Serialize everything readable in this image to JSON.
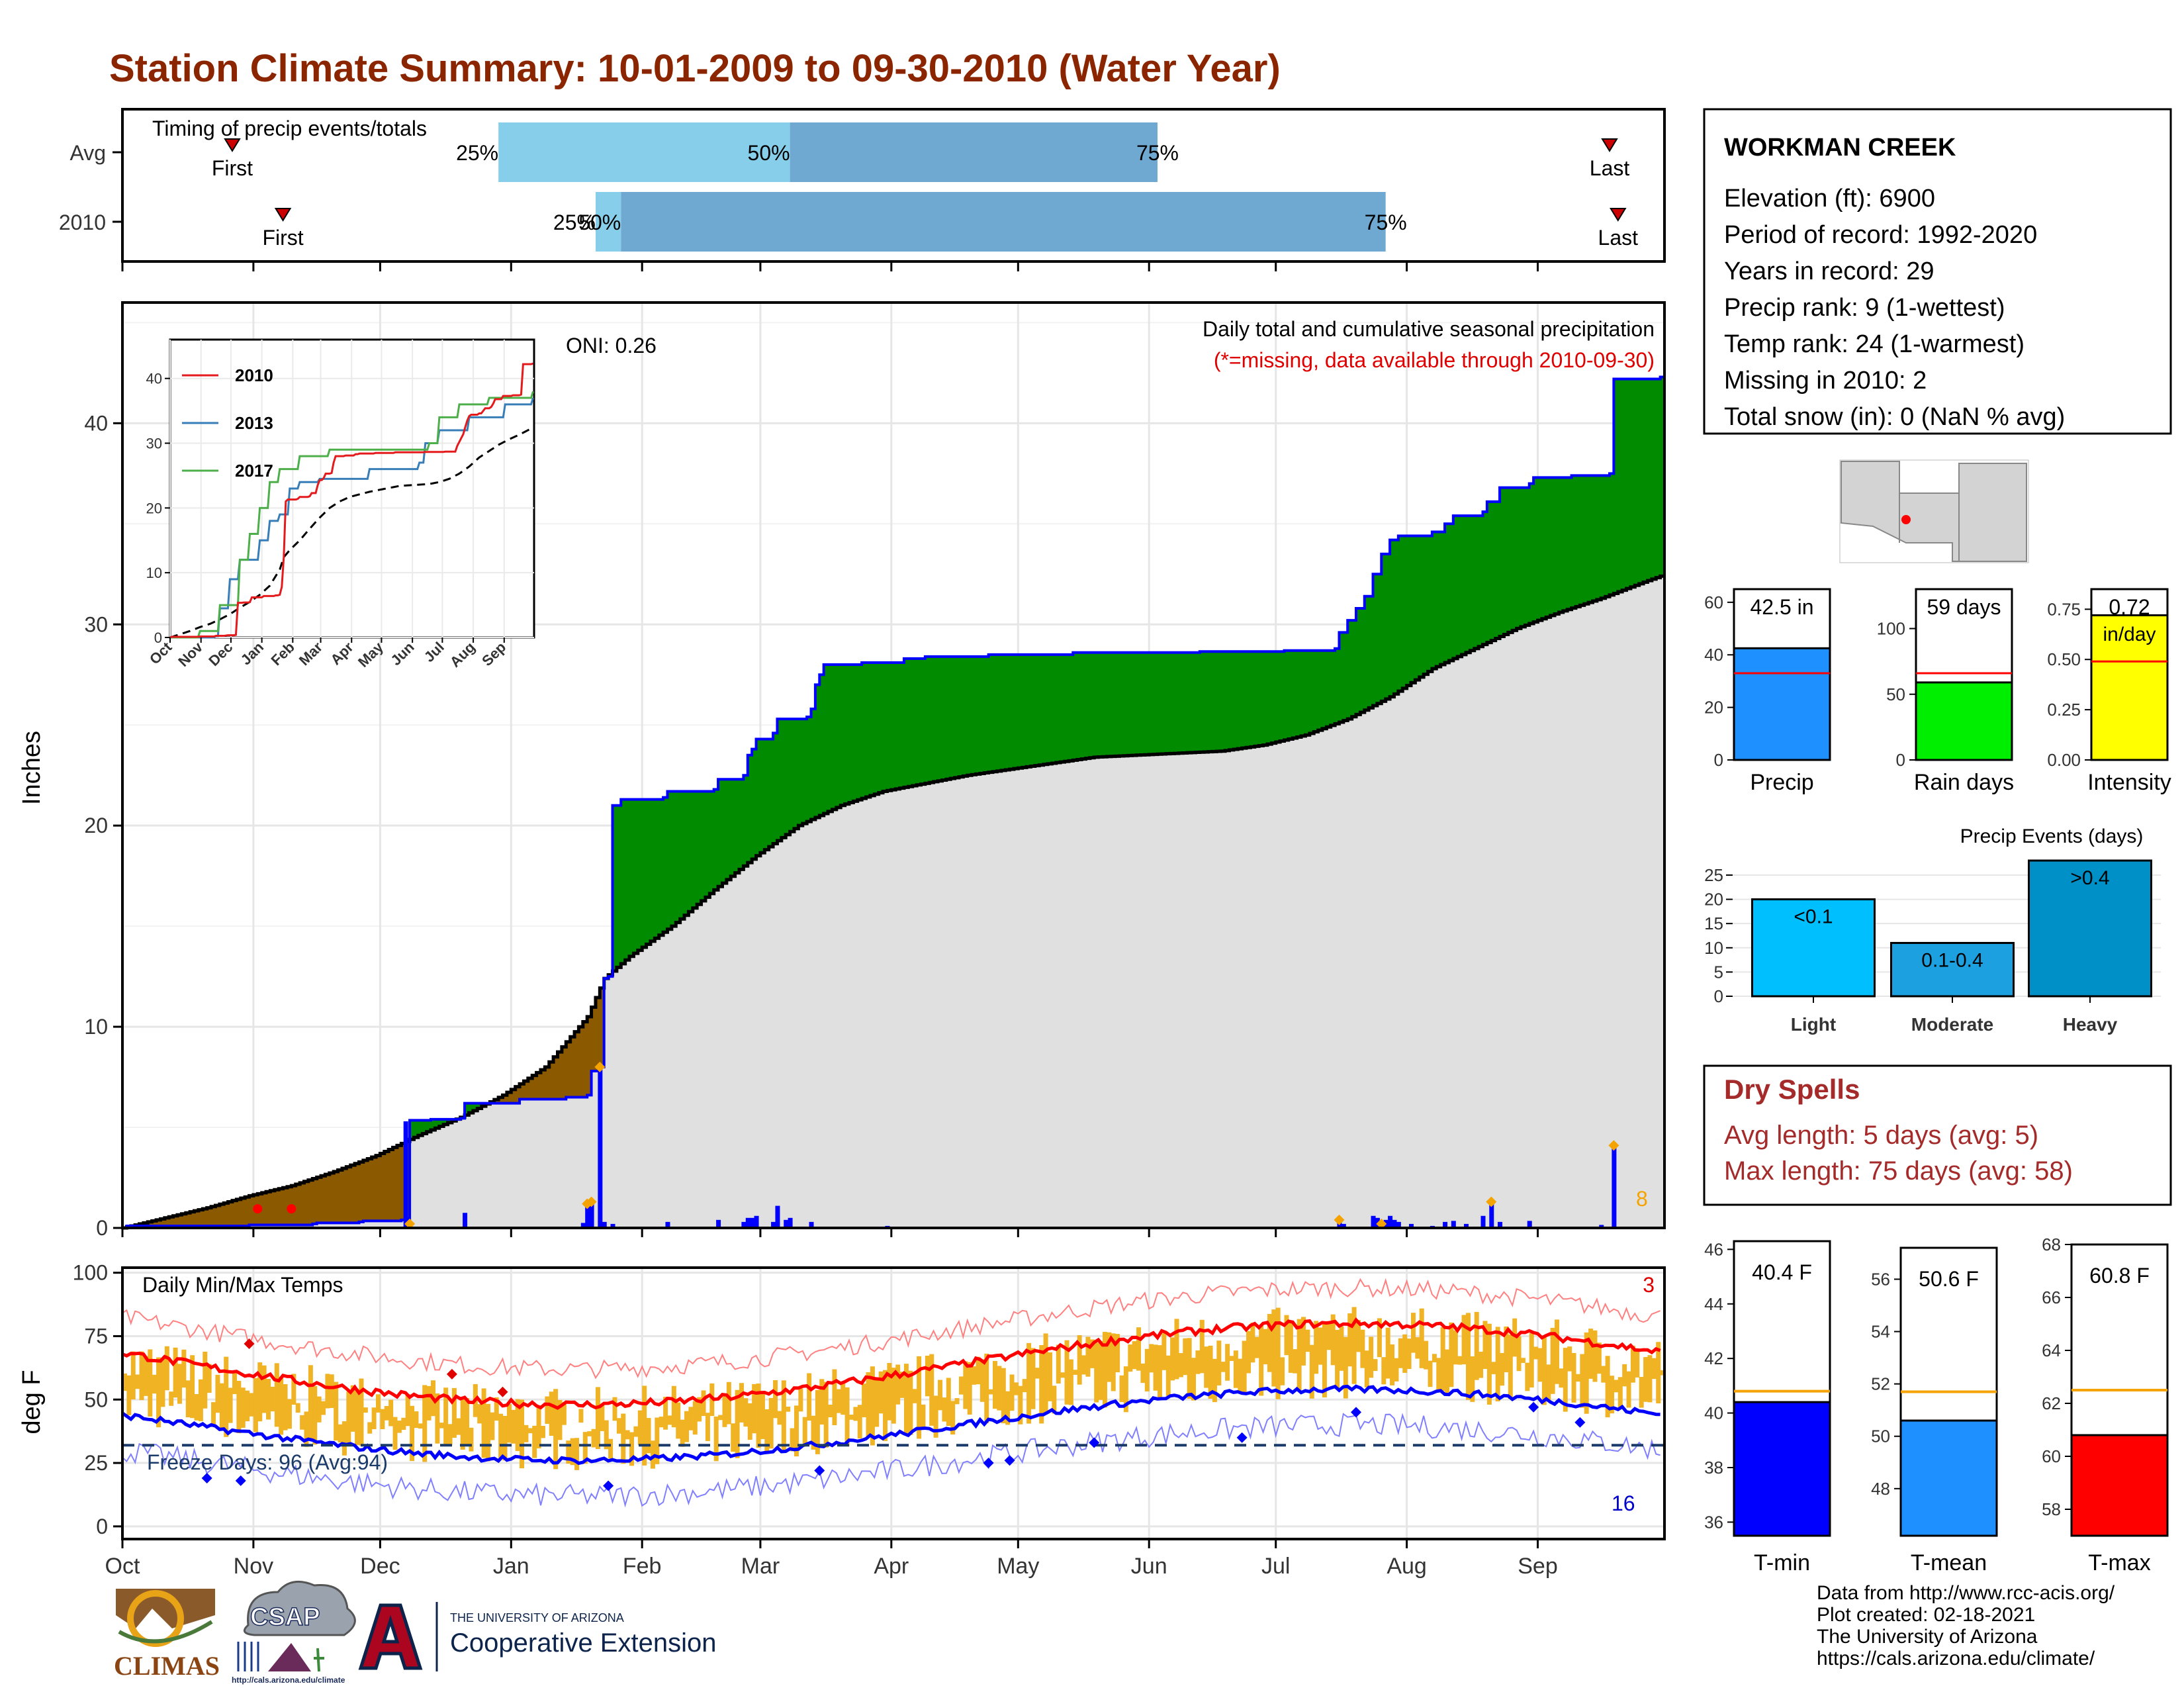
{
  "title": "Station Climate Summary: 10-01-2009 to 09-30-2010 (Water Year)",
  "timing": {
    "label": "Timing of precip events/totals",
    "rows": [
      {
        "name": "Avg",
        "first_label": "First",
        "last_label": "Last",
        "first_day": 26,
        "last_day": 352,
        "p25_day": 89,
        "p50_day": 158,
        "p75_day": 245,
        "p25_label": "25%",
        "p50_label": "50%",
        "p75_label": "75%"
      },
      {
        "name": "2010",
        "first_label": "First",
        "last_label": "Last",
        "first_day": 38,
        "last_day": 354,
        "p25_day": 112,
        "p50_day": 118,
        "p75_day": 299,
        "p25_label": "25%",
        "p50_label": "50%",
        "p75_label": "75%"
      }
    ]
  },
  "month_ticks": [
    "Oct",
    "Nov",
    "Dec",
    "Jan",
    "Feb",
    "Mar",
    "Apr",
    "May",
    "Jun",
    "Jul",
    "Aug",
    "Sep"
  ],
  "month_start_days": [
    0,
    31,
    61,
    92,
    123,
    151,
    182,
    212,
    243,
    273,
    304,
    335
  ],
  "precip": {
    "ylabel": "Inches",
    "ylim": [
      0,
      46
    ],
    "yticks": [
      0,
      10,
      20,
      30,
      40
    ],
    "oni_label": "ONI: 0.26",
    "header_line1": "Daily total and cumulative seasonal precipitation",
    "header_line2": "(*=missing, data available through 2010-09-30)",
    "count_label": "8",
    "cumulative_2010": [
      [
        0,
        0
      ],
      [
        1,
        0.1
      ],
      [
        30,
        0.15
      ],
      [
        45,
        0.2
      ],
      [
        46,
        0.25
      ],
      [
        56,
        0.3
      ],
      [
        57,
        0.35
      ],
      [
        66,
        0.4
      ],
      [
        67,
        0.45
      ],
      [
        68,
        5.35
      ],
      [
        73,
        5.4
      ],
      [
        80,
        5.45
      ],
      [
        81,
        6.2
      ],
      [
        94,
        6.4
      ],
      [
        105,
        6.5
      ],
      [
        110,
        6.6
      ],
      [
        111,
        7.8
      ],
      [
        113,
        8.0
      ],
      [
        114,
        12.4
      ],
      [
        115,
        12.5
      ],
      [
        116,
        21.0
      ],
      [
        118,
        21.3
      ],
      [
        128,
        21.4
      ],
      [
        129,
        21.7
      ],
      [
        140,
        21.8
      ],
      [
        141,
        22.3
      ],
      [
        147,
        22.5
      ],
      [
        148,
        23.5
      ],
      [
        149,
        23.8
      ],
      [
        150,
        24.3
      ],
      [
        154,
        24.6
      ],
      [
        155,
        25.3
      ],
      [
        162,
        25.4
      ],
      [
        163,
        25.8
      ],
      [
        164,
        27.0
      ],
      [
        165,
        27.5
      ],
      [
        166,
        28.0
      ],
      [
        175,
        28.1
      ],
      [
        185,
        28.3
      ],
      [
        190,
        28.4
      ],
      [
        205,
        28.5
      ],
      [
        225,
        28.6
      ],
      [
        255,
        28.65
      ],
      [
        275,
        28.7
      ],
      [
        287,
        28.8
      ],
      [
        288,
        29.6
      ],
      [
        290,
        30.2
      ],
      [
        292,
        30.8
      ],
      [
        294,
        31.4
      ],
      [
        296,
        32.5
      ],
      [
        298,
        33.5
      ],
      [
        300,
        34.2
      ],
      [
        302,
        34.4
      ],
      [
        310,
        34.6
      ],
      [
        313,
        35.0
      ],
      [
        315,
        35.4
      ],
      [
        322,
        35.6
      ],
      [
        323,
        36.1
      ],
      [
        326,
        36.8
      ],
      [
        333,
        37.0
      ],
      [
        334,
        37.3
      ],
      [
        343,
        37.4
      ],
      [
        352,
        37.5
      ],
      [
        353,
        42.2
      ],
      [
        364,
        42.3
      ]
    ],
    "cumulative_avg": [
      [
        0,
        0
      ],
      [
        10,
        0.5
      ],
      [
        20,
        1.0
      ],
      [
        30,
        1.6
      ],
      [
        40,
        2.1
      ],
      [
        50,
        2.8
      ],
      [
        60,
        3.6
      ],
      [
        70,
        4.6
      ],
      [
        80,
        5.5
      ],
      [
        90,
        6.6
      ],
      [
        100,
        8.0
      ],
      [
        110,
        10.5
      ],
      [
        114,
        12.4
      ],
      [
        120,
        13.5
      ],
      [
        130,
        15.0
      ],
      [
        140,
        16.8
      ],
      [
        150,
        18.5
      ],
      [
        160,
        20.0
      ],
      [
        170,
        21.0
      ],
      [
        180,
        21.7
      ],
      [
        190,
        22.1
      ],
      [
        200,
        22.5
      ],
      [
        210,
        22.8
      ],
      [
        220,
        23.1
      ],
      [
        230,
        23.4
      ],
      [
        240,
        23.5
      ],
      [
        250,
        23.6
      ],
      [
        260,
        23.7
      ],
      [
        270,
        24.0
      ],
      [
        280,
        24.5
      ],
      [
        290,
        25.3
      ],
      [
        300,
        26.4
      ],
      [
        310,
        27.8
      ],
      [
        320,
        28.8
      ],
      [
        330,
        29.8
      ],
      [
        340,
        30.6
      ],
      [
        350,
        31.3
      ],
      [
        360,
        32.1
      ],
      [
        364,
        32.4
      ]
    ],
    "daily_bars": [
      [
        35,
        0.05
      ],
      [
        45,
        0.05
      ],
      [
        67,
        5.3
      ],
      [
        81,
        0.75
      ],
      [
        109,
        0.25
      ],
      [
        110,
        1.2
      ],
      [
        111,
        1.3
      ],
      [
        113,
        8.0
      ],
      [
        114,
        0.3
      ],
      [
        116,
        0.2
      ],
      [
        129,
        0.3
      ],
      [
        141,
        0.4
      ],
      [
        147,
        0.3
      ],
      [
        148,
        0.5
      ],
      [
        149,
        0.5
      ],
      [
        150,
        0.6
      ],
      [
        154,
        0.3
      ],
      [
        155,
        1.1
      ],
      [
        157,
        0.4
      ],
      [
        158,
        0.5
      ],
      [
        163,
        0.3
      ],
      [
        181,
        0.1
      ],
      [
        205,
        0.05
      ],
      [
        288,
        0.4
      ],
      [
        289,
        0.2
      ],
      [
        296,
        0.6
      ],
      [
        297,
        0.5
      ],
      [
        299,
        0.4
      ],
      [
        300,
        0.6
      ],
      [
        301,
        0.4
      ],
      [
        302,
        0.3
      ],
      [
        305,
        0.2
      ],
      [
        310,
        0.1
      ],
      [
        313,
        0.3
      ],
      [
        315,
        0.35
      ],
      [
        318,
        0.2
      ],
      [
        322,
        0.6
      ],
      [
        324,
        1.3
      ],
      [
        326,
        0.3
      ],
      [
        333,
        0.35
      ],
      [
        350,
        0.15
      ],
      [
        353,
        4.1
      ]
    ],
    "orange_markers": [
      68,
      113,
      110,
      111,
      288,
      298,
      324,
      353
    ],
    "missing_markers": [
      32,
      40
    ]
  },
  "inset": {
    "ylim": [
      0,
      46
    ],
    "yticks": [
      0,
      10,
      20,
      30,
      40
    ],
    "xticks": [
      "Oct",
      "Nov",
      "Dec",
      "Jan",
      "Feb",
      "Mar",
      "Apr",
      "May",
      "Jun",
      "Jul",
      "Aug",
      "Sep"
    ],
    "legend": [
      {
        "name": "2010",
        "color": "#e41a1c"
      },
      {
        "name": "2013",
        "color": "#377eb8"
      },
      {
        "name": "2017",
        "color": "#4daf4a"
      }
    ],
    "series_2013": [
      [
        0,
        0
      ],
      [
        45,
        0.2
      ],
      [
        50,
        4.5
      ],
      [
        60,
        9
      ],
      [
        70,
        12
      ],
      [
        90,
        15
      ],
      [
        100,
        18
      ],
      [
        110,
        19
      ],
      [
        120,
        23
      ],
      [
        130,
        24
      ],
      [
        150,
        24.5
      ],
      [
        200,
        26
      ],
      [
        240,
        26
      ],
      [
        250,
        27
      ],
      [
        255,
        30
      ],
      [
        270,
        32
      ],
      [
        300,
        34
      ],
      [
        335,
        36
      ],
      [
        364,
        37
      ]
    ],
    "series_2017": [
      [
        0,
        0
      ],
      [
        30,
        1
      ],
      [
        50,
        5
      ],
      [
        70,
        12
      ],
      [
        80,
        16
      ],
      [
        90,
        20
      ],
      [
        100,
        24
      ],
      [
        110,
        26
      ],
      [
        130,
        28
      ],
      [
        160,
        29
      ],
      [
        240,
        29
      ],
      [
        260,
        30
      ],
      [
        270,
        34
      ],
      [
        290,
        36
      ],
      [
        320,
        37
      ],
      [
        364,
        38
      ]
    ]
  },
  "temps": {
    "ylabel": "deg F",
    "ylim": [
      -5,
      102
    ],
    "yticks": [
      0,
      25,
      50,
      75,
      100
    ],
    "label": "Daily Min/Max Temps",
    "freeze_label": "Freeze Days: 96 (Avg:94)",
    "freeze_line": 32,
    "hot_count": "3",
    "cold_count": "16"
  },
  "station": {
    "name": "WORKMAN CREEK",
    "lines": [
      "Elevation (ft): 6900",
      "Period of record: 1992-2020",
      "Years in record: 29",
      "Precip rank: 9 (1-wettest)",
      "Temp rank: 24 (1-warmest)",
      "Missing in 2010: 2",
      "Total snow (in): 0 (NaN % avg)"
    ]
  },
  "summary_bars": [
    {
      "label": "Precip",
      "value_label": "42.5 in",
      "value": 42.5,
      "avg": 33,
      "ylim": [
        0,
        65
      ],
      "yticks": [
        0,
        20,
        40,
        60
      ],
      "tick_labels": [
        "0",
        "20",
        "40",
        "60"
      ],
      "color": "#1e90ff"
    },
    {
      "label": "Rain days",
      "value_label": "59 days",
      "value": 59,
      "avg": 66,
      "ylim": [
        0,
        130
      ],
      "yticks": [
        0,
        50,
        100
      ],
      "tick_labels": [
        "0",
        "50",
        "100"
      ],
      "color": "#00ee00"
    },
    {
      "label": "Intensity",
      "value_label": "0.72",
      "unit_label": "in/day",
      "value": 0.72,
      "avg": 0.49,
      "ylim": [
        0,
        0.85
      ],
      "yticks": [
        0,
        0.25,
        0.5,
        0.75
      ],
      "tick_labels": [
        "0.00",
        "0.25",
        "0.50",
        "0.75"
      ],
      "color": "#ffff00"
    }
  ],
  "precip_events": {
    "title": "Precip Events (days)",
    "ylim": [
      0,
      28
    ],
    "yticks": [
      0,
      5,
      10,
      15,
      20,
      25
    ],
    "categories": [
      "Light",
      "Moderate",
      "Heavy"
    ],
    "values": [
      20,
      11,
      28
    ],
    "bar_labels": [
      "<0.1",
      "0.1-0.4",
      ">0.4"
    ],
    "colors": [
      "#00bfff",
      "#1ca0e0",
      "#0090c8"
    ]
  },
  "dry_spells": {
    "title": "Dry Spells",
    "line1": "Avg length: 5 days (avg: 5)",
    "line2": "Max length: 75 days (avg: 58)",
    "color": "#a52a2a"
  },
  "temp_bars": [
    {
      "label": "T-min",
      "value_label": "40.4 F",
      "value": 40.4,
      "avg": 40.8,
      "ylim": [
        35.5,
        46.3
      ],
      "yticks": [
        36,
        38,
        40,
        42,
        44,
        46
      ],
      "color": "#0000ff"
    },
    {
      "label": "T-mean",
      "value_label": "50.6 F",
      "value": 50.6,
      "avg": 51.7,
      "ylim": [
        46.2,
        57.2
      ],
      "yticks": [
        48,
        50,
        52,
        54,
        56
      ],
      "color": "#1e90ff"
    },
    {
      "label": "T-max",
      "value_label": "60.8 F",
      "value": 60.8,
      "avg": 62.5,
      "ylim": [
        57,
        68
      ],
      "yticks": [
        58,
        60,
        62,
        64,
        66,
        68
      ],
      "color": "#ff0000"
    }
  ],
  "logos": {
    "climas": "CLIMAS",
    "csap": "CSAP",
    "csap_url": "http://cals.arizona.edu/climate",
    "ua_small": "THE UNIVERSITY OF ARIZONA",
    "ua_big": "Cooperative Extension"
  },
  "credits": [
    "Data from http://www.rcc-acis.org/",
    "Plot created: 02-18-2021",
    "The University of Arizona",
    "https://cals.arizona.edu/climate/"
  ]
}
